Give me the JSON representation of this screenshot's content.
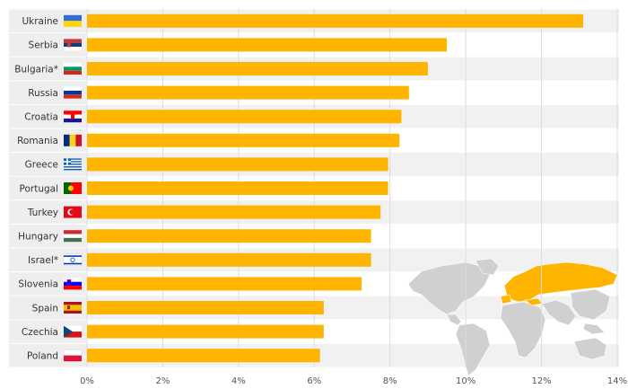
{
  "chart_data": {
    "type": "bar",
    "orientation": "horizontal",
    "categories": [
      "Ukraine",
      "Serbia",
      "Bulgaria*",
      "Russia",
      "Croatia",
      "Romania",
      "Greece",
      "Portugal",
      "Turkey",
      "Hungary",
      "Israel*",
      "Slovenia",
      "Spain",
      "Czechia",
      "Poland"
    ],
    "values": [
      13.1,
      9.5,
      9.0,
      8.5,
      8.3,
      8.25,
      7.95,
      7.95,
      7.75,
      7.5,
      7.5,
      7.25,
      6.25,
      6.25,
      6.15
    ],
    "x_tick_labels": [
      "0%",
      "2%",
      "4%",
      "6%",
      "8%",
      "10%",
      "12%",
      "14%"
    ],
    "xlim": [
      0,
      14
    ],
    "grid": true,
    "bar_color": "#FFB400",
    "row_stripe_color": "#f1f1f1",
    "flags": [
      "ukraine-flag",
      "serbia-flag",
      "bulgaria-flag",
      "russia-flag",
      "croatia-flag",
      "romania-flag",
      "greece-flag",
      "portugal-flag",
      "turkey-flag",
      "hungary-flag",
      "israel-flag",
      "slovenia-flag",
      "spain-flag",
      "czechia-flag",
      "poland-flag"
    ],
    "inset_map": {
      "type": "world-map",
      "highlight_color": "#FFB400",
      "base_color": "#d0d0d0",
      "highlighted_region": "Europe"
    }
  }
}
